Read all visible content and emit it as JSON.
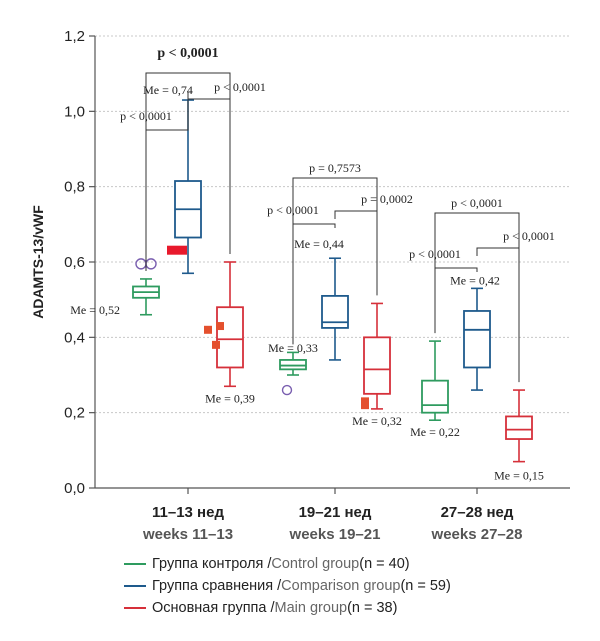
{
  "chart_data": {
    "type": "box",
    "ylabel": "ADAMTS-13/vWF",
    "ylim": [
      0.0,
      1.2
    ],
    "yticks": [
      "0,0",
      "0,2",
      "0,4",
      "0,6",
      "0,8",
      "1,0",
      "1,2"
    ],
    "grid": true,
    "categories": [
      {
        "ru": "11–13 нед",
        "en": "weeks 11–13"
      },
      {
        "ru": "19–21 нед",
        "en": "weeks 19–21"
      },
      {
        "ru": "27–28 нед",
        "en": "weeks 27–28"
      }
    ],
    "series": [
      {
        "color": "#2e9b5f",
        "boxes": [
          {
            "min": 0.46,
            "q1": 0.505,
            "median": 0.52,
            "q3": 0.535,
            "max": 0.555,
            "me_label": "Me = 0,52",
            "outliers": [
              0.595
            ],
            "outlier_marker": "circle"
          },
          {
            "min": 0.3,
            "q1": 0.315,
            "median": 0.325,
            "q3": 0.34,
            "max": 0.36,
            "me_label": "Me = 0,33",
            "outliers": [
              0.26
            ],
            "outlier_marker": "circle"
          },
          {
            "min": 0.18,
            "q1": 0.2,
            "median": 0.22,
            "q3": 0.285,
            "max": 0.39,
            "me_label": "Me = 0,22",
            "outliers": [],
            "outlier_marker": "circle"
          }
        ]
      },
      {
        "color": "#1e5a8c",
        "boxes": [
          {
            "min": 0.57,
            "q1": 0.665,
            "median": 0.74,
            "q3": 0.815,
            "max": 1.03,
            "me_label": "Me = 0,74",
            "outliers": [],
            "outlier_marker": "square"
          },
          {
            "min": 0.34,
            "q1": 0.425,
            "median": 0.44,
            "q3": 0.51,
            "max": 0.61,
            "me_label": "Me = 0,44",
            "outliers": [],
            "outlier_marker": "square"
          },
          {
            "min": 0.26,
            "q1": 0.32,
            "median": 0.42,
            "q3": 0.47,
            "max": 0.53,
            "me_label": "Me = 0,42",
            "outliers": [],
            "outlier_marker": "square"
          }
        ]
      },
      {
        "color": "#d6303a",
        "boxes": [
          {
            "min": 0.27,
            "q1": 0.32,
            "median": 0.395,
            "q3": 0.48,
            "max": 0.6,
            "me_label": "Me = 0,39",
            "outliers": [
              0.63,
              0.43,
              0.42,
              0.38
            ],
            "outlier_marker": "square"
          },
          {
            "min": 0.21,
            "q1": 0.25,
            "median": 0.315,
            "q3": 0.4,
            "max": 0.49,
            "me_label": "Me = 0,32",
            "outliers": [
              0.23,
              0.22
            ],
            "outlier_marker": "square"
          },
          {
            "min": 0.07,
            "q1": 0.13,
            "median": 0.155,
            "q3": 0.19,
            "max": 0.26,
            "me_label": "Me = 0,15",
            "outliers": [],
            "outlier_marker": "square"
          }
        ]
      }
    ],
    "pvalues": [
      {
        "group": 0,
        "top": "p < 0,0001",
        "left": "p < 0,0001",
        "right": "p < 0,0001"
      },
      {
        "group": 1,
        "top": "p = 0,7573",
        "left": "p < 0,0001",
        "right": "p = 0,0002"
      },
      {
        "group": 2,
        "top": "p < 0,0001",
        "left": "p < 0,0001",
        "right": "p < 0,0001"
      }
    ]
  },
  "legend": [
    {
      "ru": "Группа контроля / ",
      "en": "Control group",
      "n": " (n = 40)",
      "color": "#2e9b5f"
    },
    {
      "ru": "Группа сравнения / ",
      "en": "Comparison group",
      "n": " (n = 59)",
      "color": "#1e5a8c"
    },
    {
      "ru": "Основная группа / ",
      "en": "Main group",
      "n": " (n = 38)",
      "color": "#d6303a"
    }
  ]
}
